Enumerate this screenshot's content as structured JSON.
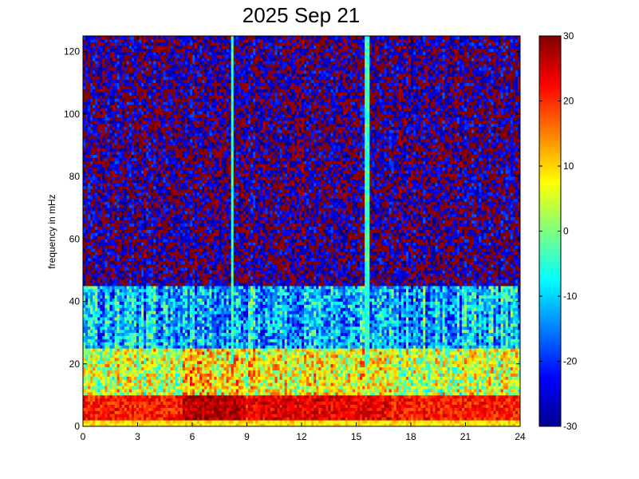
{
  "chart_data": {
    "type": "heatmap",
    "title": "2025 Sep 21",
    "xlabel": "",
    "ylabel": "frequency in mHz",
    "xlim": [
      0,
      24
    ],
    "ylim": [
      0,
      125
    ],
    "xticks": [
      "0",
      "3",
      "6",
      "9",
      "12",
      "15",
      "18",
      "21",
      "24"
    ],
    "yticks": [
      "0",
      "20",
      "40",
      "60",
      "80",
      "100",
      "120"
    ],
    "colorbar": {
      "range": [
        -30,
        30
      ],
      "ticks": [
        "30",
        "20",
        "10",
        "0",
        "-10",
        "-20",
        "-30"
      ],
      "colormap": "jet"
    },
    "description_of_pattern": {
      "low_band_mHz": [
        0,
        10
      ],
      "low_band_level": 25,
      "mid_band_mHz": [
        10,
        25
      ],
      "mid_band_level": 5,
      "upper_band_mHz": [
        40,
        125
      ],
      "upper_band_level": "alternating -25 to 30",
      "strong_vertical_lines_hours": [
        8.2,
        15.6
      ]
    }
  }
}
